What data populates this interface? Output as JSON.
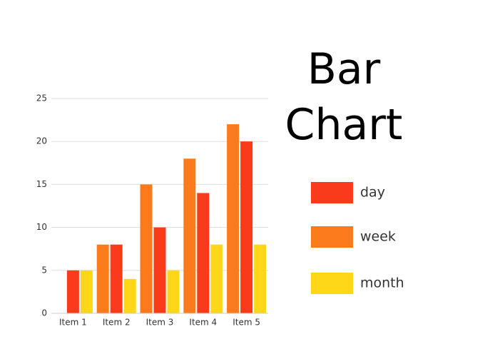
{
  "chart_data": {
    "type": "bar",
    "title": "Bar Chart",
    "categories": [
      "Item 1",
      "Item 2",
      "Item 3",
      "Item 4",
      "Item 5"
    ],
    "series": [
      {
        "name": "day",
        "color": "#f93b1b",
        "values": [
          5,
          8,
          10,
          14,
          20
        ]
      },
      {
        "name": "week",
        "color": "#fb7a1b",
        "values": [
          0,
          8,
          15,
          18,
          22
        ]
      },
      {
        "name": "month",
        "color": "#fdd617",
        "values": [
          5,
          4,
          5,
          8,
          8
        ]
      }
    ],
    "ylim": [
      0,
      25
    ],
    "yticks": [
      0,
      5,
      10,
      15,
      20,
      25
    ],
    "grid": true,
    "legend": "right"
  }
}
